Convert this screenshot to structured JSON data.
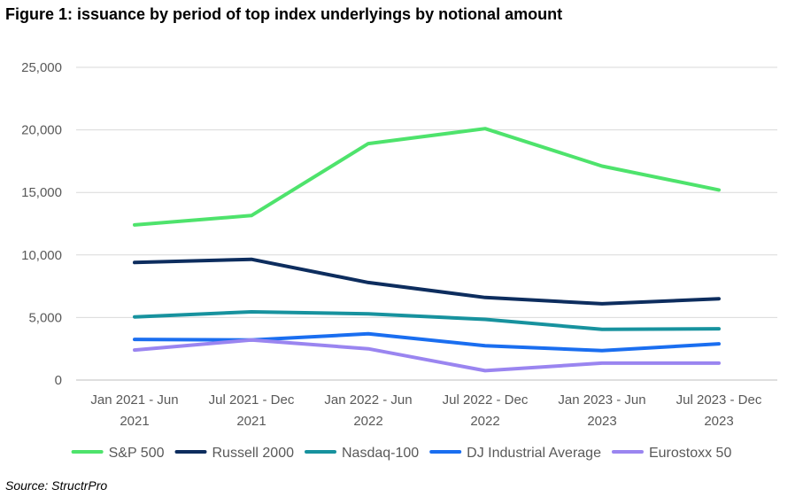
{
  "figure_title": "Figure 1: issuance by period of top index underlyings by notional amount",
  "source_text": "Source: StructrPro",
  "chart_data": {
    "type": "line",
    "title": "Figure 1: issuance by period of top index underlyings by notional amount",
    "xlabel": "",
    "ylabel": "",
    "ylim": [
      0,
      25000
    ],
    "yticks": [
      0,
      5000,
      10000,
      15000,
      20000,
      25000
    ],
    "ytick_labels": [
      "0",
      "5,000",
      "10,000",
      "15,000",
      "20,000",
      "25,000"
    ],
    "grid": true,
    "legend_position": "bottom",
    "categories": [
      [
        "Jan 2021 - Jun",
        "2021"
      ],
      [
        "Jul 2021 - Dec",
        "2021"
      ],
      [
        "Jan 2022 - Jun",
        "2022"
      ],
      [
        "Jul 2022 - Dec",
        "2022"
      ],
      [
        "Jan 2023 - Jun",
        "2023"
      ],
      [
        "Jul 2023 - Dec",
        "2023"
      ]
    ],
    "series": [
      {
        "name": "S&P 500",
        "color": "#4ee36c",
        "values": [
          12400,
          13150,
          18900,
          20100,
          17100,
          15200
        ]
      },
      {
        "name": "Russell 2000",
        "color": "#0d2d5e",
        "values": [
          9400,
          9650,
          7800,
          6600,
          6100,
          6500
        ]
      },
      {
        "name": "Nasdaq-100",
        "color": "#17929e",
        "values": [
          5050,
          5450,
          5300,
          4850,
          4050,
          4100
        ]
      },
      {
        "name": "DJ Industrial Average",
        "color": "#1a6ef0",
        "values": [
          3250,
          3200,
          3700,
          2750,
          2350,
          2900
        ]
      },
      {
        "name": "Eurostoxx 50",
        "color": "#9a85f0",
        "values": [
          2400,
          3200,
          2500,
          750,
          1350,
          1350
        ]
      }
    ]
  }
}
